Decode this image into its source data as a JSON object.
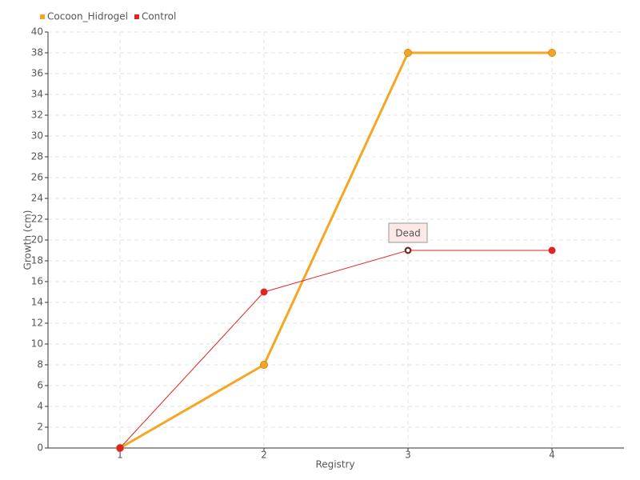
{
  "chart_data": {
    "type": "line",
    "categories": [
      "1",
      "2",
      "3",
      "4"
    ],
    "series": [
      {
        "name": "Cocoon_Hidrogel",
        "color": "#f5a623",
        "values": [
          0,
          8,
          38,
          38
        ]
      },
      {
        "name": "Control",
        "color": "#e02424",
        "values": [
          0,
          15,
          19,
          19
        ]
      }
    ],
    "ylim": [
      0,
      40
    ],
    "yticks": [
      0,
      2,
      4,
      6,
      8,
      10,
      12,
      14,
      16,
      18,
      20,
      22,
      24,
      26,
      28,
      30,
      32,
      34,
      36,
      38,
      40
    ],
    "y_label": "Growth (cm)",
    "x_label": "Registry",
    "grid": true,
    "legend": "top-left",
    "annotations": [
      {
        "text": "Dead",
        "x": "3",
        "y": 19
      }
    ]
  }
}
